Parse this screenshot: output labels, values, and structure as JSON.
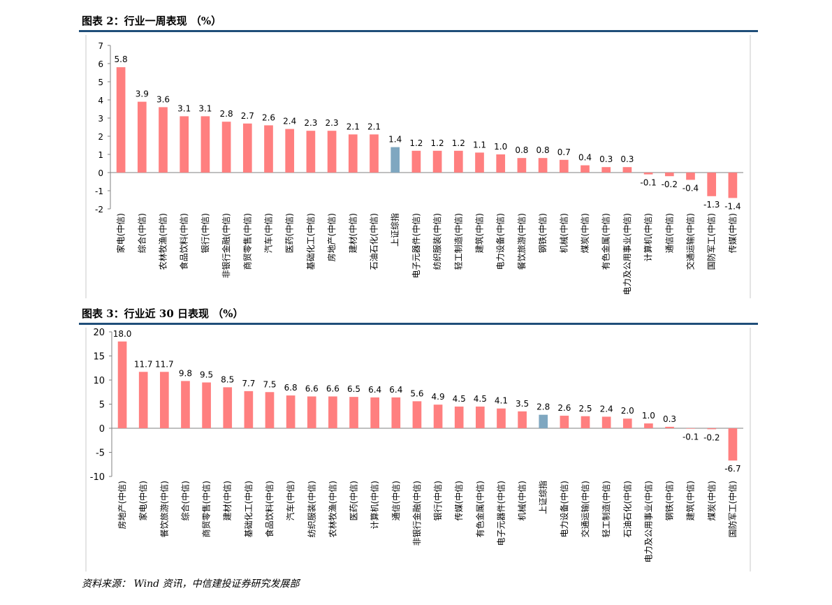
{
  "figure1": {
    "title": "图表 2：行业一周表现 （%）"
  },
  "figure2": {
    "title": "图表 3：行业近 30 日表现 （%）"
  },
  "source": "资料来源： Wind 资讯，中信建投证券研究发展部",
  "colors": {
    "bar": "#ff7f7f",
    "highlight": "#7fa7c0",
    "rule": "#1f4e79",
    "axis": "#808080"
  },
  "chart_data": [
    {
      "type": "bar",
      "title": "",
      "xlabel": "",
      "ylabel": "",
      "ylim": [
        -2,
        7
      ],
      "yticks": [
        -2,
        -1,
        0,
        1,
        2,
        3,
        4,
        5,
        6,
        7
      ],
      "highlight_category": "上证综指",
      "categories": [
        "家电(中信)",
        "综合(中信)",
        "农林牧渔(中信)",
        "食品饮料(中信)",
        "银行(中信)",
        "非银行金融(中信)",
        "商贸零售(中信)",
        "汽车(中信)",
        "医药(中信)",
        "基础化工(中信)",
        "房地产(中信)",
        "建材(中信)",
        "石油石化(中信)",
        "上证综指",
        "电子元器件(中信)",
        "纺织服装(中信)",
        "轻工制造(中信)",
        "建筑(中信)",
        "电力设备(中信)",
        "餐饮旅游(中信)",
        "钢铁(中信)",
        "机械(中信)",
        "煤炭(中信)",
        "有色金属(中信)",
        "电力及公用事业(中信)",
        "计算机(中信)",
        "通信(中信)",
        "交通运输(中信)",
        "国防军工(中信)",
        "传媒(中信)"
      ],
      "values": [
        5.8,
        3.9,
        3.6,
        3.1,
        3.1,
        2.8,
        2.7,
        2.6,
        2.4,
        2.3,
        2.3,
        2.1,
        2.1,
        1.4,
        1.2,
        1.2,
        1.2,
        1.1,
        1.0,
        0.8,
        0.8,
        0.7,
        0.4,
        0.3,
        0.3,
        -0.1,
        -0.2,
        -0.4,
        -1.3,
        -1.4
      ]
    },
    {
      "type": "bar",
      "title": "",
      "xlabel": "",
      "ylabel": "",
      "ylim": [
        -10,
        20
      ],
      "yticks": [
        -10,
        -5,
        0,
        5,
        10,
        15,
        20
      ],
      "highlight_category": "上证综指",
      "categories": [
        "房地产(中信)",
        "家电(中信)",
        "餐饮旅游(中信)",
        "综合(中信)",
        "商贸零售(中信)",
        "建材(中信)",
        "基础化工(中信)",
        "食品饮料(中信)",
        "汽车(中信)",
        "纺织服装(中信)",
        "农林牧渔(中信)",
        "医药(中信)",
        "计算机(中信)",
        "通信(中信)",
        "非银行金融(中信)",
        "银行(中信)",
        "传媒(中信)",
        "有色金属(中信)",
        "电子元器件(中信)",
        "机械(中信)",
        "上证综指",
        "电力设备(中信)",
        "交通运输(中信)",
        "轻工制造(中信)",
        "石油石化(中信)",
        "电力及公用事业(中信)",
        "钢铁(中信)",
        "建筑(中信)",
        "煤炭(中信)",
        "国防军工(中信)"
      ],
      "values": [
        18.0,
        11.7,
        11.7,
        9.8,
        9.5,
        8.5,
        7.7,
        7.5,
        6.8,
        6.6,
        6.6,
        6.5,
        6.4,
        6.4,
        5.6,
        4.9,
        4.5,
        4.5,
        4.1,
        3.5,
        2.8,
        2.6,
        2.5,
        2.4,
        2.0,
        1.0,
        0.3,
        -0.1,
        -0.2,
        -6.7
      ]
    }
  ]
}
